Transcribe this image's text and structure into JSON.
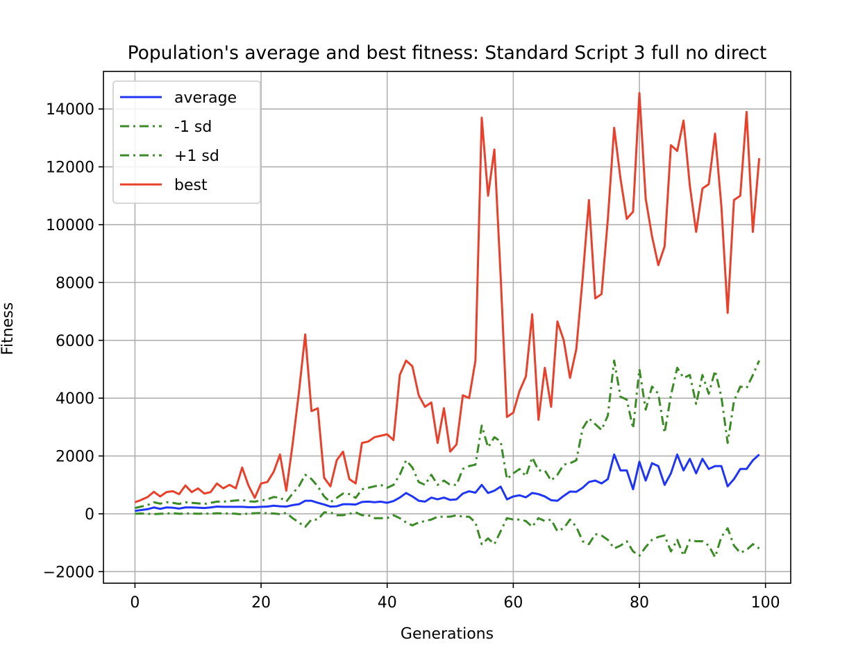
{
  "chart_data": {
    "type": "line",
    "title": "Population's average and best fitness: Standard Script 3 full no direct",
    "xlabel": "Generations",
    "ylabel": "Fitness",
    "xlim": [
      -5,
      104
    ],
    "ylim": [
      -2400,
      15300
    ],
    "x_ticks": [
      0,
      20,
      40,
      60,
      80,
      100
    ],
    "y_ticks": [
      -2000,
      0,
      2000,
      4000,
      6000,
      8000,
      10000,
      12000,
      14000
    ],
    "x_tick_labels": [
      "0",
      "20",
      "40",
      "60",
      "80",
      "100"
    ],
    "y_tick_labels": [
      "−2000",
      "0",
      "2000",
      "4000",
      "6000",
      "8000",
      "10000",
      "12000",
      "14000"
    ],
    "grid": true,
    "legend_position": "upper-left",
    "x": [
      0,
      1,
      2,
      3,
      4,
      5,
      6,
      7,
      8,
      9,
      10,
      11,
      12,
      13,
      14,
      15,
      16,
      17,
      18,
      19,
      20,
      21,
      22,
      23,
      24,
      25,
      26,
      27,
      28,
      29,
      30,
      31,
      32,
      33,
      34,
      35,
      36,
      37,
      38,
      39,
      40,
      41,
      42,
      43,
      44,
      45,
      46,
      47,
      48,
      49,
      50,
      51,
      52,
      53,
      54,
      55,
      56,
      57,
      58,
      59,
      60,
      61,
      62,
      63,
      64,
      65,
      66,
      67,
      68,
      69,
      70,
      71,
      72,
      73,
      74,
      75,
      76,
      77,
      78,
      79,
      80,
      81,
      82,
      83,
      84,
      85,
      86,
      87,
      88,
      89,
      90,
      91,
      92,
      93,
      94,
      95,
      96,
      97,
      98,
      99
    ],
    "series": [
      {
        "name": "average",
        "color": "#1f35f5",
        "style": "solid",
        "values": [
          100,
          130,
          160,
          220,
          170,
          220,
          210,
          180,
          220,
          220,
          210,
          200,
          220,
          250,
          240,
          240,
          240,
          240,
          230,
          230,
          240,
          250,
          280,
          260,
          250,
          300,
          330,
          450,
          450,
          380,
          320,
          250,
          260,
          330,
          330,
          320,
          410,
          420,
          400,
          420,
          380,
          440,
          560,
          720,
          600,
          450,
          420,
          560,
          500,
          560,
          480,
          500,
          700,
          780,
          730,
          1000,
          720,
          800,
          940,
          500,
          600,
          640,
          570,
          720,
          680,
          600,
          470,
          450,
          620,
          770,
          760,
          900,
          1100,
          1150,
          1050,
          1200,
          2050,
          1500,
          1500,
          850,
          1800,
          1150,
          1750,
          1650,
          1000,
          1400,
          2050,
          1500,
          1900,
          1400,
          1900,
          1550,
          1650,
          1650,
          950,
          1200,
          1550,
          1550,
          1850,
          2050
        ]
      },
      {
        "name": "-1 sd",
        "color": "#3a8a25",
        "style": "dashdot",
        "values": [
          0,
          10,
          0,
          -10,
          0,
          10,
          20,
          0,
          10,
          10,
          0,
          10,
          0,
          20,
          10,
          10,
          0,
          -20,
          10,
          20,
          30,
          20,
          10,
          -10,
          30,
          -150,
          -300,
          -450,
          -200,
          -200,
          50,
          50,
          -50,
          -50,
          0,
          50,
          -50,
          -50,
          -150,
          -150,
          -150,
          -50,
          -150,
          -300,
          -400,
          -300,
          -250,
          -200,
          -100,
          -100,
          -100,
          -50,
          -100,
          -100,
          -300,
          -1050,
          -850,
          -1050,
          -600,
          -150,
          -200,
          -200,
          -250,
          -450,
          -150,
          -250,
          -200,
          -600,
          -500,
          -200,
          -450,
          -950,
          -1050,
          -700,
          -750,
          -900,
          -1200,
          -1100,
          -950,
          -1300,
          -1450,
          -1150,
          -900,
          -800,
          -750,
          -1300,
          -900,
          -1450,
          -900,
          -950,
          -950,
          -1100,
          -1500,
          -800,
          -500,
          -1100,
          -1350,
          -1250,
          -1050,
          -1200
        ]
      },
      {
        "name": "+1 sd",
        "color": "#3a8a25",
        "style": "dashdot",
        "values": [
          200,
          250,
          300,
          400,
          350,
          400,
          380,
          340,
          400,
          380,
          360,
          340,
          380,
          420,
          420,
          440,
          460,
          480,
          430,
          420,
          460,
          500,
          580,
          560,
          420,
          700,
          950,
          1350,
          1200,
          950,
          600,
          400,
          550,
          700,
          680,
          550,
          850,
          900,
          950,
          1000,
          900,
          1000,
          1350,
          1850,
          1600,
          1100,
          1000,
          1350,
          1000,
          1150,
          1000,
          1000,
          1550,
          1650,
          1700,
          3050,
          2300,
          2650,
          2500,
          1200,
          1400,
          1550,
          1300,
          1950,
          1500,
          1500,
          1150,
          1350,
          1700,
          1750,
          1850,
          2950,
          3300,
          3100,
          2900,
          3400,
          5300,
          4050,
          3950,
          2950,
          5000,
          3600,
          4400,
          4150,
          2800,
          4100,
          5050,
          4700,
          4800,
          3800,
          4800,
          4150,
          4950,
          4050,
          2450,
          3900,
          4400,
          4350,
          4800,
          5300
        ]
      },
      {
        "name": "best",
        "color": "#e8402b",
        "style": "solid",
        "values": [
          400,
          480,
          580,
          760,
          600,
          750,
          780,
          680,
          980,
          750,
          880,
          700,
          750,
          1050,
          880,
          1000,
          880,
          1600,
          980,
          550,
          1050,
          1100,
          1450,
          2050,
          800,
          2400,
          4200,
          6200,
          3550,
          3650,
          1250,
          950,
          1850,
          2150,
          1200,
          1050,
          2450,
          2500,
          2650,
          2700,
          2750,
          2550,
          4800,
          5300,
          5100,
          4100,
          3700,
          3850,
          2450,
          3650,
          2150,
          2400,
          4100,
          4000,
          5300,
          13700,
          11000,
          12600,
          8200,
          3350,
          3500,
          4250,
          4750,
          6900,
          3250,
          5050,
          3700,
          6650,
          6000,
          4700,
          5700,
          8150,
          10850,
          7450,
          7600,
          10200,
          13350,
          11600,
          10200,
          10450,
          14550,
          10900,
          9600,
          8600,
          9250,
          12750,
          12550,
          13600,
          11350,
          9750,
          11250,
          11400,
          13150,
          10650,
          6950,
          10850,
          11000,
          13900,
          9750,
          12300
        ]
      }
    ]
  }
}
